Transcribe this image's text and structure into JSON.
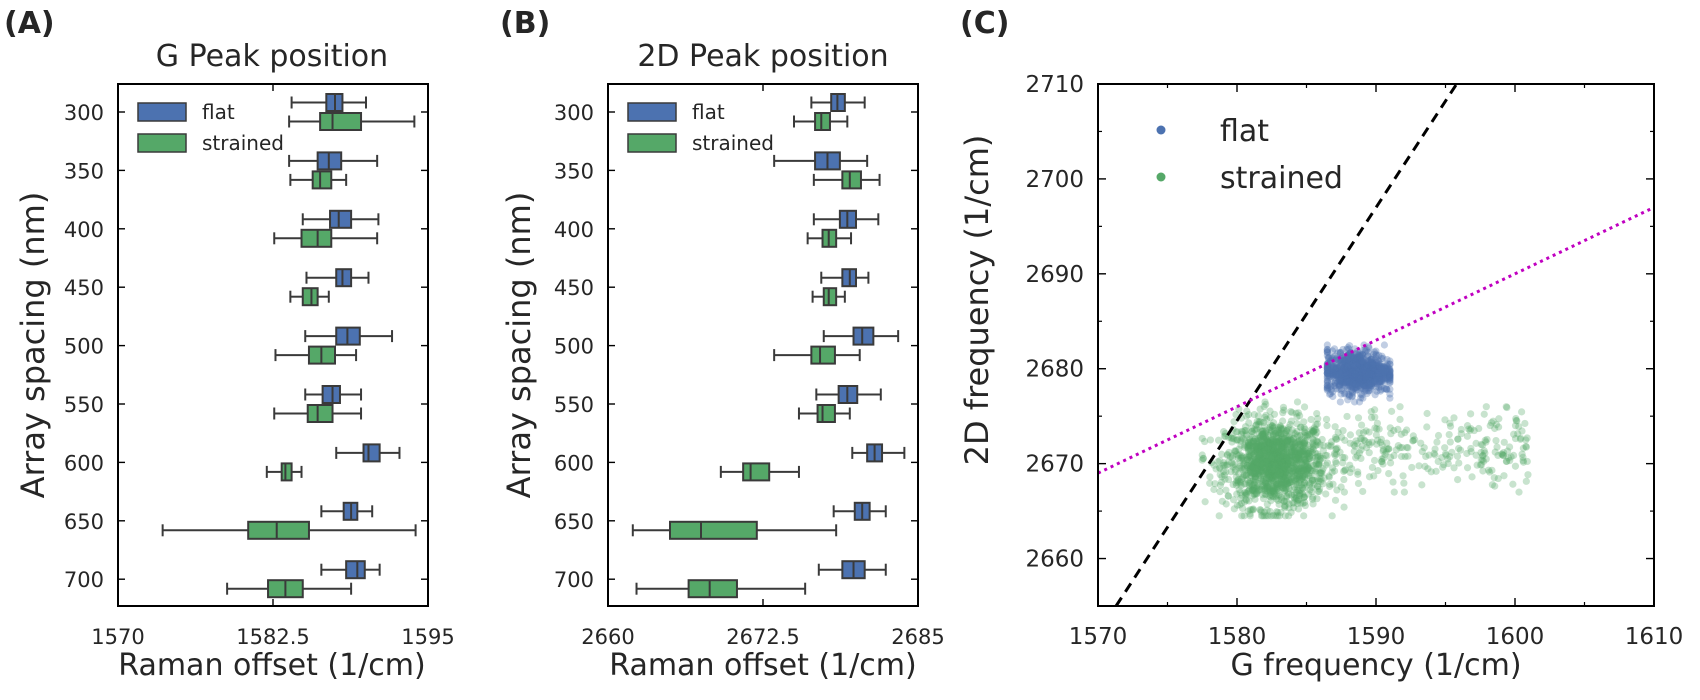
{
  "colors": {
    "flat": "#4c72b0",
    "strained": "#55a868",
    "slope_line": "#000000",
    "fit_line": "#c000c0",
    "box_edge": "#3a3a3a"
  },
  "chart_data": [
    {
      "panel": "(A)",
      "type": "box",
      "orientation": "horizontal",
      "title": "G Peak position",
      "xlabel": "Raman offset (1/cm)",
      "ylabel": "Array spacing (nm)",
      "xlim": [
        1570,
        1595
      ],
      "xticks": [
        "1570",
        "1582.5",
        "1595"
      ],
      "categories": [
        "300",
        "350",
        "400",
        "450",
        "500",
        "550",
        "600",
        "650",
        "700"
      ],
      "legend": {
        "position": "top-left",
        "entries": [
          "flat",
          "strained"
        ]
      },
      "series": [
        {
          "name": "flat",
          "color": "#4c72b0",
          "boxes": [
            {
              "min": 1584.0,
              "q1": 1586.8,
              "median": 1587.5,
              "q3": 1588.1,
              "max": 1590.0
            },
            {
              "min": 1583.8,
              "q1": 1586.1,
              "median": 1587.0,
              "q3": 1588.0,
              "max": 1590.9
            },
            {
              "min": 1584.9,
              "q1": 1587.1,
              "median": 1587.8,
              "q3": 1588.8,
              "max": 1591.0
            },
            {
              "min": 1585.2,
              "q1": 1587.6,
              "median": 1588.1,
              "q3": 1588.8,
              "max": 1590.2
            },
            {
              "min": 1585.1,
              "q1": 1587.6,
              "median": 1588.5,
              "q3": 1589.5,
              "max": 1592.1
            },
            {
              "min": 1585.1,
              "q1": 1586.5,
              "median": 1587.3,
              "q3": 1587.9,
              "max": 1589.6
            },
            {
              "min": 1587.6,
              "q1": 1589.8,
              "median": 1590.2,
              "q3": 1591.1,
              "max": 1592.7
            },
            {
              "min": 1586.4,
              "q1": 1588.2,
              "median": 1588.8,
              "q3": 1589.3,
              "max": 1590.5
            },
            {
              "min": 1586.4,
              "q1": 1588.4,
              "median": 1589.3,
              "q3": 1589.9,
              "max": 1591.1
            }
          ]
        },
        {
          "name": "strained",
          "color": "#55a868",
          "boxes": [
            {
              "min": 1583.8,
              "q1": 1586.3,
              "median": 1587.3,
              "q3": 1589.6,
              "max": 1593.9
            },
            {
              "min": 1583.9,
              "q1": 1585.7,
              "median": 1586.3,
              "q3": 1587.2,
              "max": 1588.4
            },
            {
              "min": 1582.6,
              "q1": 1584.8,
              "median": 1586.1,
              "q3": 1587.2,
              "max": 1590.9
            },
            {
              "min": 1583.9,
              "q1": 1584.9,
              "median": 1585.6,
              "q3": 1586.1,
              "max": 1587.0
            },
            {
              "min": 1582.7,
              "q1": 1585.4,
              "median": 1586.4,
              "q3": 1587.5,
              "max": 1589.2
            },
            {
              "min": 1582.6,
              "q1": 1585.3,
              "median": 1586.1,
              "q3": 1587.3,
              "max": 1589.6
            },
            {
              "min": 1582.0,
              "q1": 1583.2,
              "median": 1583.5,
              "q3": 1584.0,
              "max": 1584.8
            },
            {
              "min": 1573.6,
              "q1": 1580.5,
              "median": 1582.8,
              "q3": 1585.4,
              "max": 1594.0
            },
            {
              "min": 1578.8,
              "q1": 1582.1,
              "median": 1583.5,
              "q3": 1584.9,
              "max": 1588.8
            }
          ]
        }
      ]
    },
    {
      "panel": "(B)",
      "type": "box",
      "orientation": "horizontal",
      "title": "2D Peak position",
      "xlabel": "Raman offset (1/cm)",
      "ylabel": "Array spacing (nm)",
      "xlim": [
        2660,
        2685
      ],
      "xticks": [
        "2660",
        "2672.5",
        "2685"
      ],
      "categories": [
        "300",
        "350",
        "400",
        "450",
        "500",
        "550",
        "600",
        "650",
        "700"
      ],
      "legend": {
        "position": "top-left",
        "entries": [
          "flat",
          "strained"
        ]
      },
      "series": [
        {
          "name": "flat",
          "color": "#4c72b0",
          "boxes": [
            {
              "min": 2676.4,
              "q1": 2678.0,
              "median": 2678.5,
              "q3": 2679.1,
              "max": 2680.7
            },
            {
              "min": 2673.4,
              "q1": 2676.7,
              "median": 2677.7,
              "q3": 2678.7,
              "max": 2680.9
            },
            {
              "min": 2676.6,
              "q1": 2678.7,
              "median": 2679.3,
              "q3": 2680.0,
              "max": 2681.8
            },
            {
              "min": 2677.2,
              "q1": 2678.9,
              "median": 2679.5,
              "q3": 2680.0,
              "max": 2681.0
            },
            {
              "min": 2677.4,
              "q1": 2679.8,
              "median": 2680.5,
              "q3": 2681.4,
              "max": 2683.4
            },
            {
              "min": 2676.8,
              "q1": 2678.6,
              "median": 2679.3,
              "q3": 2680.1,
              "max": 2682.0
            },
            {
              "min": 2679.7,
              "q1": 2680.9,
              "median": 2681.5,
              "q3": 2682.1,
              "max": 2683.9
            },
            {
              "min": 2678.2,
              "q1": 2679.9,
              "median": 2680.5,
              "q3": 2681.1,
              "max": 2682.4
            },
            {
              "min": 2677.0,
              "q1": 2678.9,
              "median": 2679.8,
              "q3": 2680.7,
              "max": 2682.4
            }
          ]
        },
        {
          "name": "strained",
          "color": "#55a868",
          "boxes": [
            {
              "min": 2675.0,
              "q1": 2676.7,
              "median": 2677.2,
              "q3": 2677.9,
              "max": 2679.3
            },
            {
              "min": 2676.6,
              "q1": 2678.9,
              "median": 2679.5,
              "q3": 2680.4,
              "max": 2681.9
            },
            {
              "min": 2676.1,
              "q1": 2677.3,
              "median": 2677.8,
              "q3": 2678.4,
              "max": 2679.6
            },
            {
              "min": 2676.5,
              "q1": 2677.4,
              "median": 2677.8,
              "q3": 2678.4,
              "max": 2679.1
            },
            {
              "min": 2673.4,
              "q1": 2676.4,
              "median": 2677.1,
              "q3": 2678.3,
              "max": 2680.3
            },
            {
              "min": 2675.4,
              "q1": 2676.9,
              "median": 2677.3,
              "q3": 2678.3,
              "max": 2679.5
            },
            {
              "min": 2669.1,
              "q1": 2670.9,
              "median": 2671.5,
              "q3": 2673.0,
              "max": 2675.4
            },
            {
              "min": 2662.0,
              "q1": 2665.0,
              "median": 2667.5,
              "q3": 2672.0,
              "max": 2678.4
            },
            {
              "min": 2662.3,
              "q1": 2666.5,
              "median": 2668.2,
              "q3": 2670.4,
              "max": 2675.9
            }
          ]
        }
      ]
    },
    {
      "panel": "(C)",
      "type": "scatter",
      "title": "",
      "xlabel": "G frequency (1/cm)",
      "ylabel": "2D frequency (1/cm)",
      "xlim": [
        1570,
        1610
      ],
      "ylim": [
        2655,
        2710
      ],
      "xticks": [
        "1570",
        "1580",
        "1590",
        "1600",
        "1610"
      ],
      "yticks": [
        "2660",
        "2670",
        "2680",
        "2690",
        "2700",
        "2710"
      ],
      "grid": false,
      "legend": {
        "position": "top-left",
        "entries": [
          "flat",
          "strained"
        ]
      },
      "series": [
        {
          "name": "flat",
          "color": "#4c72b0",
          "cluster": {
            "center": [
              1588.7,
              2679.7
            ],
            "spread": [
              1.2,
              1.1
            ],
            "x_range": [
              1586.5,
              1591.0
            ],
            "y_range": [
              2676.5,
              2682.5
            ]
          }
        },
        {
          "name": "strained",
          "color": "#55a868",
          "cluster": {
            "center": [
              1582.8,
              2670.0
            ],
            "spread": [
              1.8,
              2.3
            ],
            "x_range": [
              1577.5,
              1601.0
            ],
            "y_range": [
              2664.5,
              2676.5
            ]
          },
          "tail": {
            "x_range": [
              1587.0,
              1601.0
            ],
            "y_range": [
              2667.0,
              2676.0
            ]
          }
        }
      ],
      "lines": [
        {
          "style": "dashed",
          "color": "#000000",
          "points": [
            [
              1571.3,
              2655.0
            ],
            [
              1595.8,
              2710.0
            ]
          ]
        },
        {
          "style": "dotted",
          "color": "#c000c0",
          "points": [
            [
              1570.0,
              2669.0
            ],
            [
              1610.0,
              2697.0
            ]
          ]
        }
      ]
    }
  ]
}
